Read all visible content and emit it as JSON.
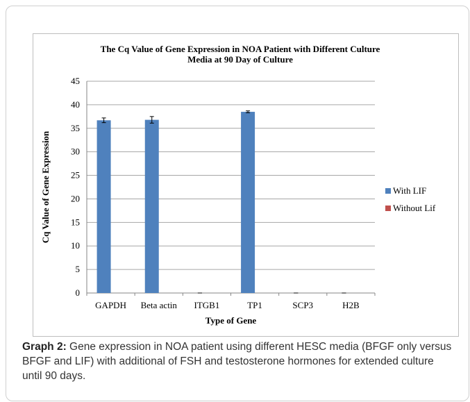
{
  "chart_data": {
    "type": "bar",
    "title": "The Cq Value of Gene Expression in NOA Patient with Different Culture Media at 90 Day of Culture",
    "title_lines": [
      "The Cq Value of Gene Expression in NOA Patient with Different Culture",
      "Media at 90 Day of Culture"
    ],
    "xlabel": "Type of Gene",
    "ylabel": "Cq Value of Gene Expression",
    "categories": [
      "GAPDH",
      "Beta actin",
      "ITGB1",
      "TP1",
      "SCP3",
      "H2B"
    ],
    "ylim": [
      0,
      45
    ],
    "yticks": [
      0,
      5,
      10,
      15,
      20,
      25,
      30,
      35,
      40,
      45
    ],
    "grid": true,
    "legend_position": "right",
    "series": [
      {
        "name": "With LIF",
        "color": "#4f81bd",
        "values": [
          36.7,
          36.8,
          0,
          38.5,
          0,
          0
        ],
        "errors": [
          0.5,
          0.7,
          0,
          0.2,
          0,
          0
        ]
      },
      {
        "name": "Without Lif",
        "color": "#c0504d",
        "values": [
          0,
          0,
          0,
          0,
          0,
          0
        ],
        "errors": [
          0,
          0,
          0,
          0,
          0,
          0
        ]
      }
    ]
  },
  "caption": {
    "label": "Graph 2:",
    "text": " Gene expression in NOA patient using different HESC media (BFGF only versus BFGF and LIF) with additional of FSH and testosterone hormones for extended culture until 90 days."
  }
}
